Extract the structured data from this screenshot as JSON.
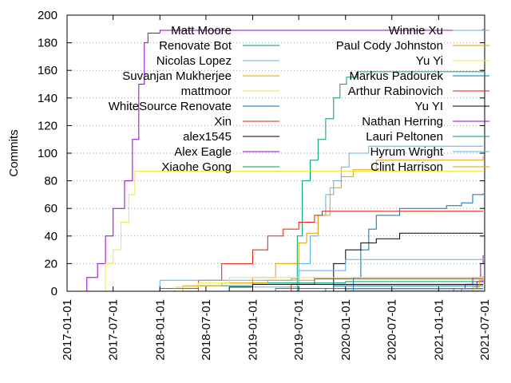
{
  "chart_data": {
    "type": "line",
    "step": true,
    "title": "",
    "xlabel": "",
    "ylabel": "Commits",
    "ylim": [
      0,
      200
    ],
    "yticks": [
      0,
      20,
      40,
      60,
      80,
      100,
      120,
      140,
      160,
      180,
      200
    ],
    "xlim": [
      "2017-01-01",
      "2021-07-01"
    ],
    "xticks": [
      "2017-01-01",
      "2017-07-01",
      "2018-01-01",
      "2018-07-01",
      "2019-01-01",
      "2019-07-01",
      "2020-01-01",
      "2020-07-01",
      "2021-01-01",
      "2021-07-01"
    ],
    "grid": "horizontal-dotted",
    "legend": "two-columns-top",
    "series": [
      {
        "name": "Matt Moore",
        "color": "#9400d3",
        "x": [
          "2017-03-01",
          "2017-03-20",
          "2017-05-01",
          "2017-06-01",
          "2017-07-01",
          "2017-08-15",
          "2017-09-15",
          "2017-10-10",
          "2017-11-01",
          "2017-11-15",
          "2018-01-01",
          "2021-06-25"
        ],
        "y": [
          0,
          10,
          20,
          40,
          60,
          80,
          110,
          150,
          180,
          187,
          189,
          190
        ]
      },
      {
        "name": "Renovate Bot",
        "color": "#009e73",
        "x": [
          "2019-06-10",
          "2019-06-25",
          "2019-07-15",
          "2019-08-15",
          "2019-09-15",
          "2019-10-15",
          "2019-11-15",
          "2019-12-10",
          "2020-01-05",
          "2020-02-15",
          "2021-06-25"
        ],
        "y": [
          0,
          40,
          80,
          95,
          110,
          125,
          140,
          150,
          155,
          159,
          160
        ]
      },
      {
        "name": "Nicolas Lopez",
        "color": "#56b4e9",
        "x": [
          "2018-05-01",
          "2019-01-01",
          "2019-07-01",
          "2019-08-15",
          "2019-09-15",
          "2019-10-15",
          "2019-11-15",
          "2019-12-15",
          "2020-01-15",
          "2020-04-01",
          "2021-06-25"
        ],
        "y": [
          0,
          3,
          20,
          40,
          55,
          70,
          80,
          90,
          100,
          105,
          105
        ]
      },
      {
        "name": "Suvanjan Mukherjee",
        "color": "#e69f00",
        "x": [
          "2018-09-01",
          "2019-01-01",
          "2019-04-01",
          "2019-07-01",
          "2019-08-01",
          "2019-09-15",
          "2019-11-01",
          "2019-12-15",
          "2020-02-01",
          "2020-05-01",
          "2021-06-25"
        ],
        "y": [
          0,
          10,
          20,
          35,
          42,
          55,
          75,
          83,
          88,
          95,
          98
        ]
      },
      {
        "name": "mattmoor",
        "color": "#f0e442",
        "x": [
          "2017-05-15",
          "2017-06-01",
          "2017-07-01",
          "2017-08-01",
          "2017-09-01",
          "2017-09-25",
          "2021-06-25"
        ],
        "y": [
          0,
          20,
          30,
          50,
          70,
          87,
          87
        ]
      },
      {
        "name": "WhiteSource Renovate",
        "color": "#0072b2",
        "x": [
          "2019-10-15",
          "2020-02-01",
          "2020-03-01",
          "2020-04-01",
          "2020-05-01",
          "2020-08-01",
          "2021-02-01",
          "2021-04-01",
          "2021-05-15",
          "2021-06-25"
        ],
        "y": [
          0,
          10,
          30,
          45,
          55,
          60,
          62,
          64,
          70,
          71
        ]
      },
      {
        "name": "Xin",
        "color": "#e51e10",
        "x": [
          "2018-03-01",
          "2018-06-01",
          "2018-09-01",
          "2019-01-01",
          "2019-03-01",
          "2019-05-01",
          "2019-07-01",
          "2019-09-01",
          "2019-10-01",
          "2021-06-25"
        ],
        "y": [
          0,
          8,
          20,
          30,
          40,
          45,
          50,
          55,
          58,
          58
        ]
      },
      {
        "name": "alex1545",
        "color": "#000000",
        "x": [
          "2019-10-01",
          "2019-11-15",
          "2020-01-01",
          "2020-03-01",
          "2020-05-01",
          "2020-08-01",
          "2021-06-25"
        ],
        "y": [
          0,
          20,
          30,
          35,
          38,
          42,
          42
        ]
      },
      {
        "name": "Alex Eagle",
        "color": "#9400d3",
        "x": [
          "2020-12-01",
          "2021-03-01",
          "2021-04-15",
          "2021-05-15",
          "2021-06-15",
          "2021-06-25"
        ],
        "y": [
          0,
          2,
          5,
          10,
          20,
          26
        ]
      },
      {
        "name": "Xiaohe Gong",
        "color": "#009e73",
        "x": [
          "2017-11-01",
          "2018-01-01",
          "2018-06-01",
          "2019-01-01",
          "2019-07-01",
          "2020-01-01",
          "2021-06-25"
        ],
        "y": [
          0,
          2,
          4,
          6,
          6,
          7,
          7
        ]
      },
      {
        "name": "Winnie Xu",
        "color": "#56b4e9",
        "x": [
          "2017-11-15",
          "2018-01-01",
          "2018-07-01",
          "2019-06-01",
          "2019-07-01",
          "2020-01-01",
          "2021-06-25"
        ],
        "y": [
          0,
          8,
          8,
          9,
          15,
          23,
          24
        ]
      },
      {
        "name": "Paul Cody Johnston",
        "color": "#e69f00",
        "x": [
          "2017-11-15",
          "2018-04-01",
          "2018-09-01",
          "2019-03-01",
          "2019-09-01",
          "2020-02-01",
          "2021-06-25"
        ],
        "y": [
          0,
          4,
          6,
          8,
          9,
          10,
          10
        ]
      },
      {
        "name": "Yu Yi",
        "color": "#f0e442",
        "x": [
          "2017-12-01",
          "2018-03-01",
          "2018-06-01",
          "2018-10-01",
          "2021-06-25"
        ],
        "y": [
          0,
          3,
          6,
          10,
          10
        ]
      },
      {
        "name": "Markus Padourek",
        "color": "#0072b2",
        "x": [
          "2019-09-01",
          "2019-10-15",
          "2019-11-15",
          "2021-06-25"
        ],
        "y": [
          0,
          2,
          4,
          4
        ]
      },
      {
        "name": "Arthur Rabinovich",
        "color": "#e51e10",
        "x": [
          "2019-03-01",
          "2019-06-01",
          "2019-09-01",
          "2021-06-25"
        ],
        "y": [
          0,
          5,
          9,
          9
        ]
      },
      {
        "name": "Yu YI",
        "color": "#000000",
        "x": [
          "2018-07-01",
          "2018-10-01",
          "2019-01-01",
          "2021-06-25"
        ],
        "y": [
          0,
          3,
          5,
          5
        ]
      },
      {
        "name": "Nathan Herring",
        "color": "#9400d3",
        "x": [
          "2021-02-01",
          "2021-04-01",
          "2021-06-01",
          "2021-06-25"
        ],
        "y": [
          0,
          2,
          7,
          8
        ]
      },
      {
        "name": "Lauri Peltonen",
        "color": "#009e73",
        "x": [
          "2018-02-01",
          "2019-04-01",
          "2021-06-25"
        ],
        "y": [
          0,
          2,
          2
        ]
      },
      {
        "name": "Hyrum Wright",
        "color": "#56b4e9",
        "x": [
          "2019-12-01",
          "2020-01-01",
          "2021-06-25"
        ],
        "y": [
          0,
          1,
          1
        ]
      },
      {
        "name": "Clint Harrison",
        "color": "#e69f00",
        "x": [
          "2021-04-15",
          "2021-05-15",
          "2021-06-10",
          "2021-06-25"
        ],
        "y": [
          0,
          3,
          8,
          11
        ]
      }
    ]
  }
}
